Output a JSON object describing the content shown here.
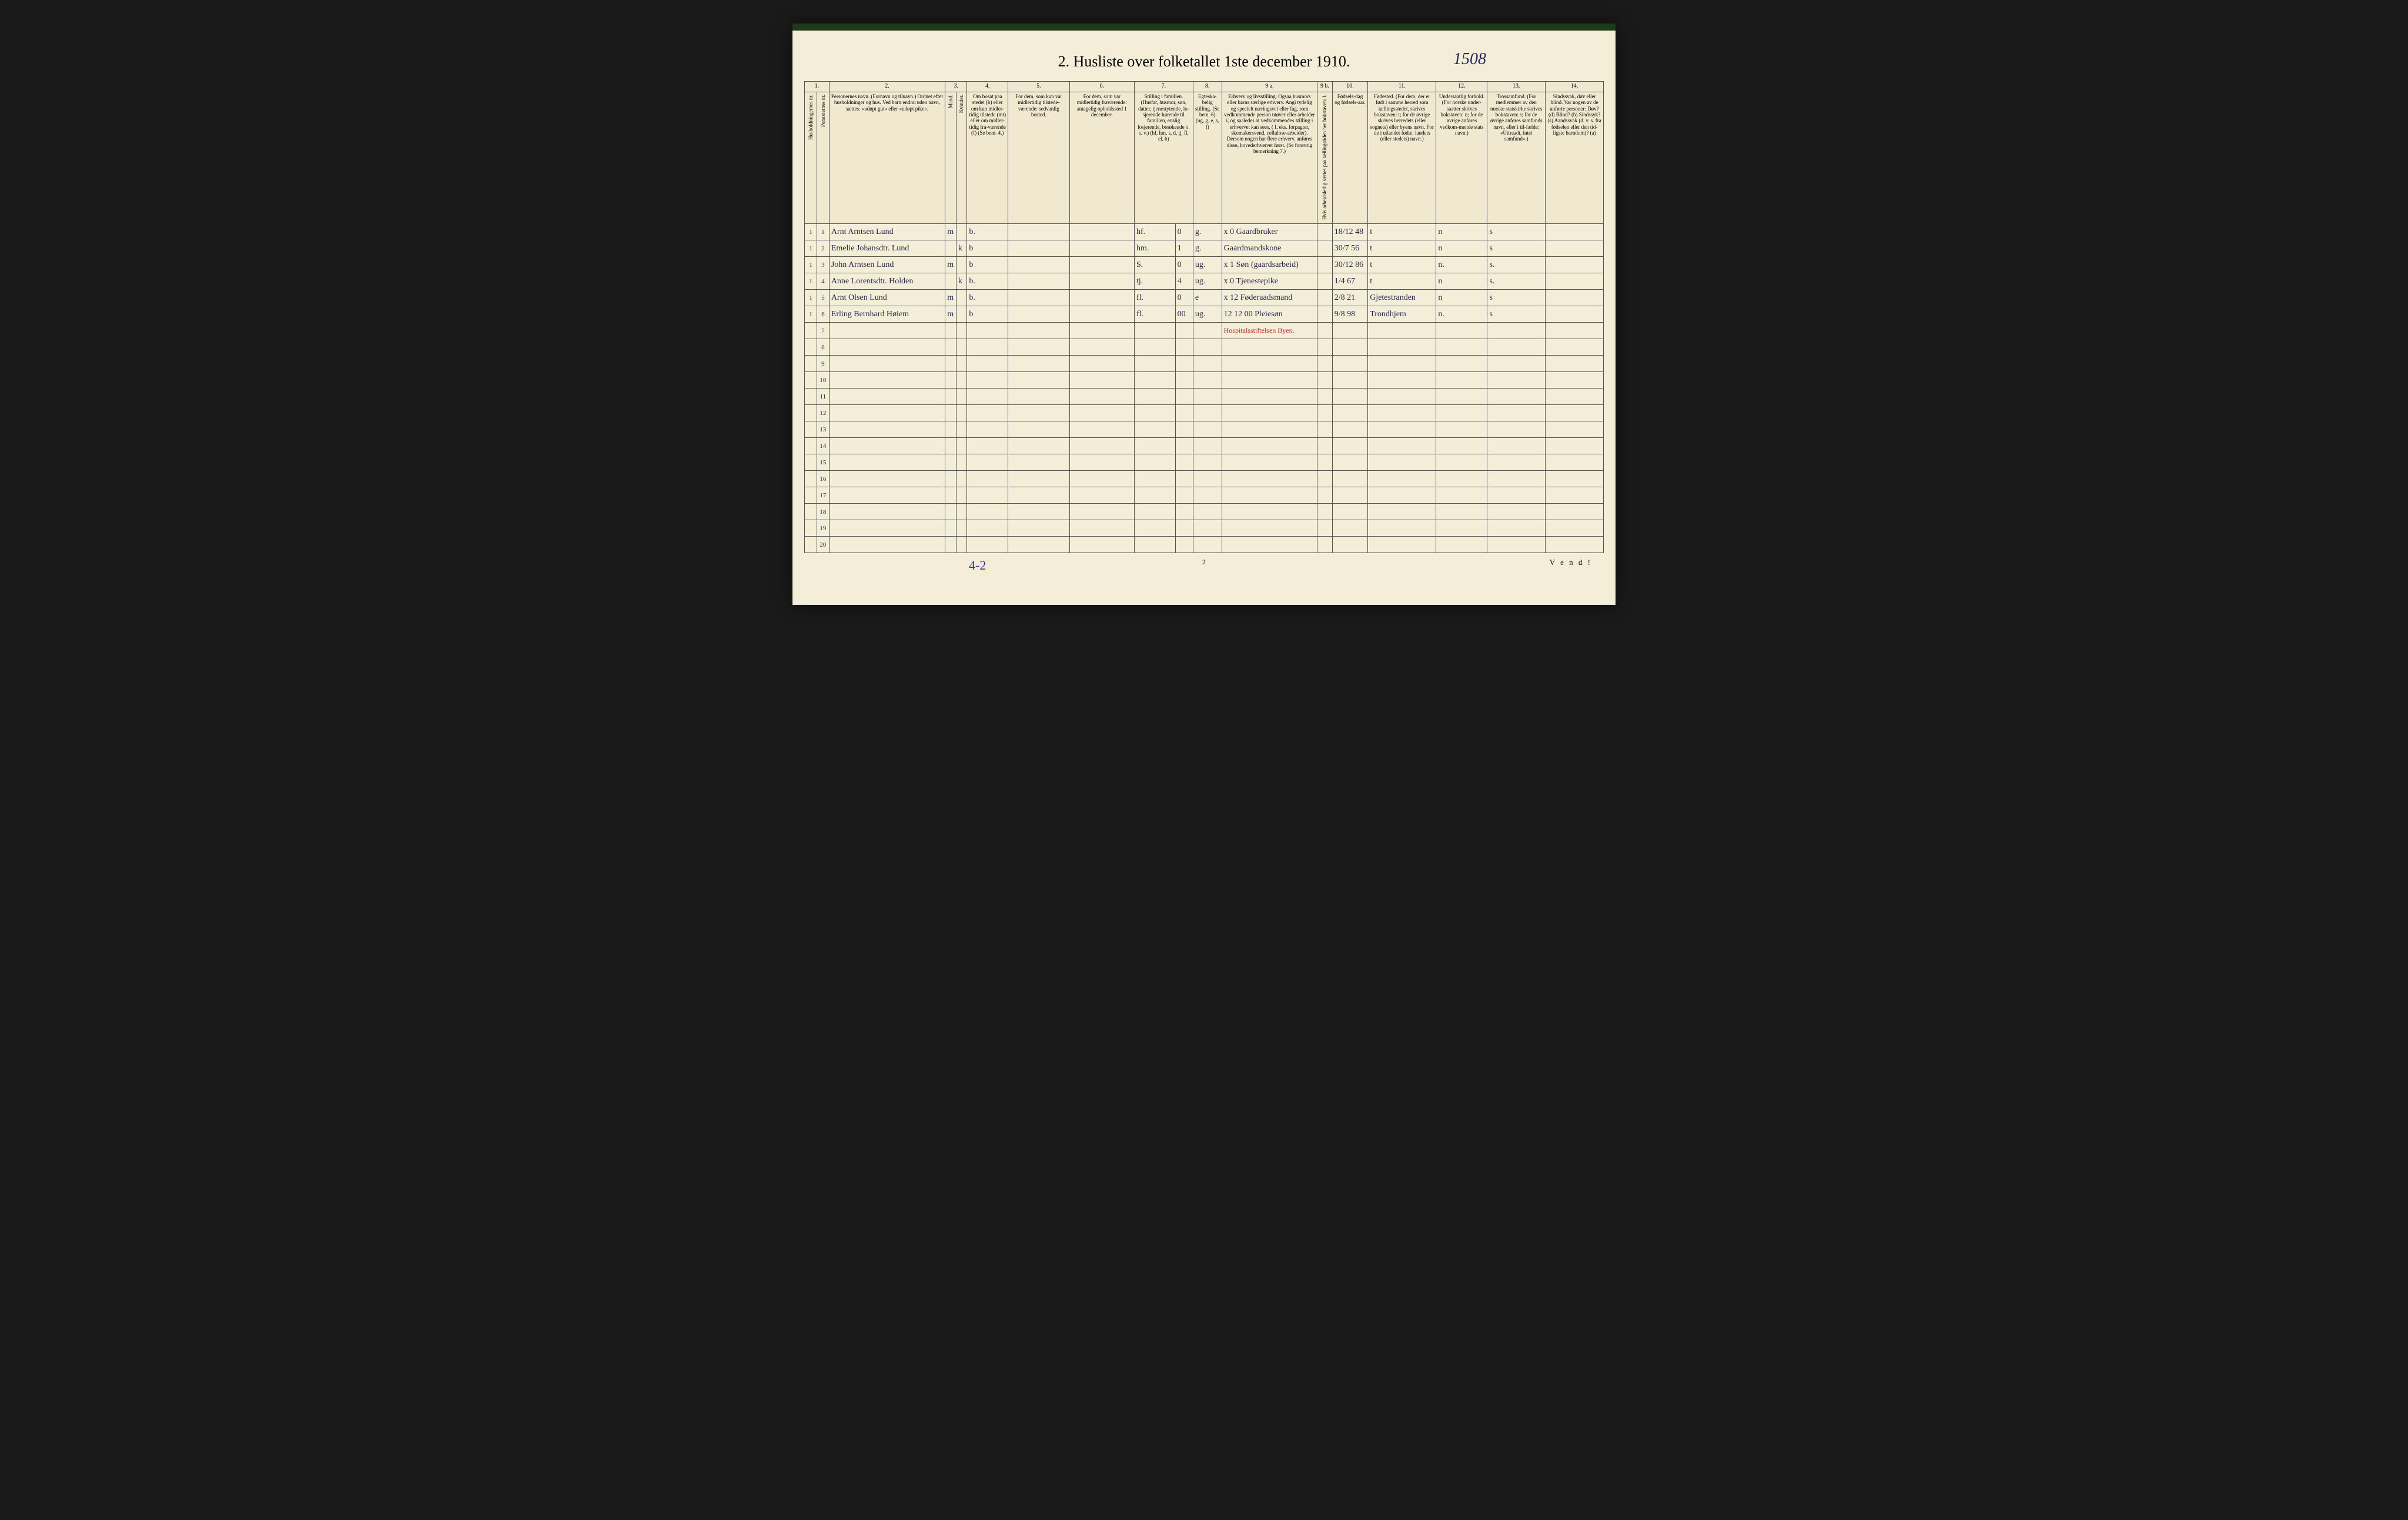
{
  "title": "2.  Husliste over folketallet 1ste december 1910.",
  "handwritten_top": "1508",
  "page_number": "2",
  "vend": "V e n d !",
  "hand_bottom": "4-2",
  "colors": {
    "paper": "#f4eed8",
    "ink": "#2a2a4a",
    "red": "#b03030",
    "border": "#555"
  },
  "col_numbers": [
    "1.",
    "2.",
    "3.",
    "4.",
    "5.",
    "6.",
    "7.",
    "8.",
    "9 a.",
    "9 b.",
    "10.",
    "11.",
    "12.",
    "13.",
    "14."
  ],
  "headers": {
    "c1a": "Husholdningernes nr.",
    "c1b": "Personernes nr.",
    "c2": "Personernes navn.\n(Fornavn og tilnavn.)\nOrdnet efter husholdninger og hus.\nVed barn endnu uden navn, sættes: «udøpt gut» eller «udøpt pike».",
    "c3": "Kjøn.",
    "c3a": "Mand.",
    "c3b": "Kvinder.",
    "c4": "Om bosat paa stedet (b) eller om kun midler-tidig tilstede (mt) eller om midler-tidig fra-værende (f)\n(Se bem. 4.)",
    "c5": "For dem, som kun var midlertidig tilstede-værende:\nsedvanlig bosted.",
    "c6": "For dem, som var midlertidig fraværende:\nantagelig opholdssted 1 december.",
    "c7": "Stilling i familien.\n(Husfar, husmor, søn, datter, tjenestytende, lo-sjerende hørende til familien, enslig losjerende, besøkende o. s. v.)\n(hf, hm, s, d, tj, fl, el, b)",
    "c8": "Egteska-belig stilling.\n(Se bem. 6)\n(ug, g, e, s, f)",
    "c9a": "Erhverv og livsstilling.\nOgsaa husmors eller barns særlige erhverv. Angi tydelig og specielt næringsvei eller fag, som vedkommende person utøver eller arbeider i, og saaledes at vedkommendes stilling i erhvervet kan sees, ( f. eks. forpagter, skomakersvend, cellulose-arbeider). Dersom nogen har flere erhverv, anføres disse, hovederhvervet først.\n(Se forøvrig bemerkning 7.)",
    "c9b": "Hvis arbeidsledig sættes paa tællingstiden her bokstaven: l.",
    "c10": "Fødsels-dag og fødsels-aar.",
    "c11": "Fødested.\n(For dem, der er født i samme herred som tællingsstedet, skrives bokstaven: t; for de øvrige skrives herredets (eller sognets) eller byens navn. For de i utlandet fødte: landets (eller stedets) navn.)",
    "c12": "Undersaatlig forhold.\n(For norske under-saatter skrives bokstaven: n; for de øvrige anføres vedkom-mende stats navn.)",
    "c13": "Trossamfund.\n(For medlemmer av den norske statskirke skrives bokstaven: s; for de øvrige anføres samfunds navn, eller i til-fælde: «Uttraadt, intet samfund».)",
    "c14": "Sindssvak, døv eller blind.\nVar nogen av de anførte personer:\nDøv?       (d)\nBlind?     (b)\nSindssyk? (s)\nAandssvak (d. v. s. fra fødselen eller den tid-ligste barndom)? (a)"
  },
  "rows": [
    {
      "n": "1",
      "hh": "1",
      "pn": "1",
      "name": "Arnt Arntsen Lund",
      "m": "m",
      "k": "",
      "bos": "b.",
      "c5": "",
      "c6": "",
      "fam": "hf.",
      "fam2": "0",
      "egt": "g.",
      "erhv": "Gaardbruker",
      "x": "x 0",
      "c9b": "",
      "fod": "18/12 48",
      "fsted": "t",
      "und": "n",
      "tros": "s",
      "c14": ""
    },
    {
      "n": "2",
      "hh": "1",
      "pn": "2",
      "name": "Emelie Johansdtr. Lund",
      "m": "",
      "k": "k",
      "bos": "b",
      "c5": "",
      "c6": "",
      "fam": "hm.",
      "fam2": "1",
      "egt": "g.",
      "erhv": "Gaardmandskone",
      "x": "",
      "c9b": "",
      "fod": "30/7 56",
      "fsted": "t",
      "und": "n",
      "tros": "s",
      "c14": ""
    },
    {
      "n": "3",
      "hh": "1",
      "pn": "3",
      "name": "John Arntsen Lund",
      "m": "m",
      "k": "",
      "bos": "b",
      "c5": "",
      "c6": "",
      "fam": "S.",
      "fam2": "0",
      "egt": "ug.",
      "erhv": "Søn (gaardsarbeid)",
      "x": "x 1",
      "c9b": "",
      "fod": "30/12 86",
      "fsted": "t",
      "und": "n.",
      "tros": "s.",
      "c14": ""
    },
    {
      "n": "4",
      "hh": "1",
      "pn": "4",
      "name": "Anne Lorentsdtr. Holden",
      "m": "",
      "k": "k",
      "bos": "b.",
      "c5": "",
      "c6": "",
      "fam": "tj.",
      "fam2": "4",
      "egt": "ug.",
      "erhv": "Tjenestepike",
      "x": "x 0",
      "c9b": "",
      "fod": "1/4 67",
      "fsted": "t",
      "und": "n",
      "tros": "s.",
      "c14": ""
    },
    {
      "n": "5",
      "hh": "1",
      "pn": "5",
      "name": "Arnt Olsen Lund",
      "m": "m",
      "k": "",
      "bos": "b.",
      "c5": "",
      "c6": "",
      "fam": "fl.",
      "fam2": "0",
      "egt": "e",
      "erhv": "Føderaadsmand",
      "x": "x 12",
      "c9b": "",
      "fod": "2/8 21",
      "fsted": "Gjetestranden",
      "und": "n",
      "tros": "s",
      "c14": ""
    },
    {
      "n": "6",
      "hh": "1",
      "pn": "6",
      "name": "Erling Bernhard Høiem",
      "m": "m",
      "k": "",
      "bos": "b",
      "c5": "",
      "c6": "",
      "fam": "fl.",
      "fam2": "00",
      "egt": "ug.",
      "erhv": "Pleiesøn",
      "x": "12 12 00",
      "c9b": "",
      "fod": "9/8 98",
      "fsted": "Trondhjem",
      "und": "n.",
      "tros": "s",
      "c14": ""
    }
  ],
  "red_note": "Hospitalsstiftelsen Byen.",
  "empty_rows": [
    7,
    8,
    9,
    10,
    11,
    12,
    13,
    14,
    15,
    16,
    17,
    18,
    19,
    20
  ]
}
